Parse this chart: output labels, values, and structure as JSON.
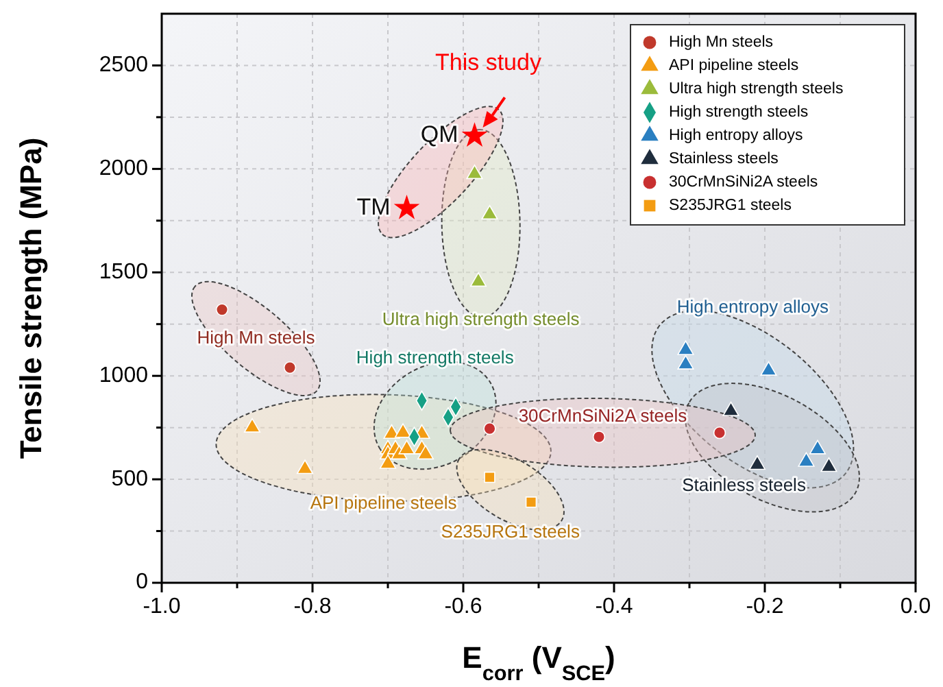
{
  "chart_data": {
    "type": "scatter",
    "xlabel": "E$_{corr}$ (V$_{SCE}$)",
    "ylabel": "Tensile strength (MPa)",
    "xlim": [
      -1,
      0
    ],
    "xticks": [
      {
        "value": -1,
        "label": "-1.0"
      },
      {
        "value": -0.9,
        "label": null
      },
      {
        "value": -0.8,
        "label": "-0.8"
      },
      {
        "value": -0.7,
        "label": null
      },
      {
        "value": -0.6,
        "label": "-0.6"
      },
      {
        "value": -0.5,
        "label": null
      },
      {
        "value": -0.4,
        "label": "-0.4"
      },
      {
        "value": -0.3,
        "label": null
      },
      {
        "value": -0.2,
        "label": "-0.2"
      },
      {
        "value": -0.1,
        "label": null
      },
      {
        "value": 0,
        "label": "0.0"
      }
    ],
    "ylim": [
      0,
      2750
    ],
    "yticks": [
      0,
      {
        "value": 250,
        "label": null
      },
      500,
      {
        "value": 750,
        "label": null
      },
      1000,
      {
        "value": 1250,
        "label": null
      },
      1500,
      {
        "value": 1750,
        "label": null
      },
      2000,
      {
        "value": 2250,
        "label": null
      },
      2500
    ],
    "grid": true,
    "legend": "top right",
    "series": [
      {
        "name": "High Mn steels",
        "color": "#c0392b",
        "marker": "circle",
        "x": [
          -0.92,
          -0.83
        ],
        "values": [
          1320,
          1040
        ]
      },
      {
        "name": "API pipeline steels",
        "color": "#f39c12",
        "marker": "triangle",
        "x": [
          -0.88,
          -0.81,
          -0.695,
          -0.68,
          -0.655,
          -0.7,
          -0.7,
          -0.7,
          -0.69,
          -0.685,
          -0.675,
          -0.655,
          -0.65
        ],
        "values": [
          750,
          550,
          720,
          725,
          720,
          645,
          620,
          575,
          645,
          620,
          645,
          645,
          620
        ]
      },
      {
        "name": "Ultra high strength steels",
        "color": "#9bbb3b",
        "marker": "triangle",
        "x": [
          -0.585,
          -0.565,
          -0.58
        ],
        "values": [
          1975,
          1780,
          1455
        ]
      },
      {
        "name": "High strength steels",
        "color": "#16a085",
        "marker": "diamond",
        "x": [
          -0.655,
          -0.61,
          -0.62,
          -0.665
        ],
        "values": [
          880,
          850,
          800,
          705
        ]
      },
      {
        "name": "High entropy alloys",
        "color": "#2a7fc1",
        "marker": "triangle",
        "x": [
          -0.305,
          -0.305,
          -0.195,
          -0.13,
          -0.145
        ],
        "values": [
          1125,
          1055,
          1025,
          645,
          585
        ]
      },
      {
        "name": "Stainless steels",
        "color": "#1f2d3d",
        "marker": "triangle",
        "x": [
          -0.245,
          -0.21,
          -0.115
        ],
        "values": [
          830,
          570,
          560
        ]
      },
      {
        "name": "30CrMnSiNi2A steels",
        "color": "#c83030",
        "marker": "circle",
        "x": [
          -0.565,
          -0.42,
          -0.26
        ],
        "values": [
          745,
          705,
          725
        ]
      },
      {
        "name": "S235JRG1 steels",
        "color": "#f39c12",
        "marker": "square",
        "x": [
          -0.565,
          -0.51
        ],
        "values": [
          510,
          390
        ]
      },
      {
        "color": "#ff0000",
        "marker": "star",
        "x": [
          -0.585,
          -0.675
        ],
        "values": [
          2160,
          1810
        ]
      }
    ],
    "annotations": [
      "High Mn steels",
      "API pipeline steels",
      "Ultra high strength steels",
      "High strength steels",
      "High entropy alloys",
      "Stainless steels",
      "30CrMnSiNi2A steels",
      "S235JRG1 steels",
      "This study",
      "QM",
      "TM"
    ]
  }
}
